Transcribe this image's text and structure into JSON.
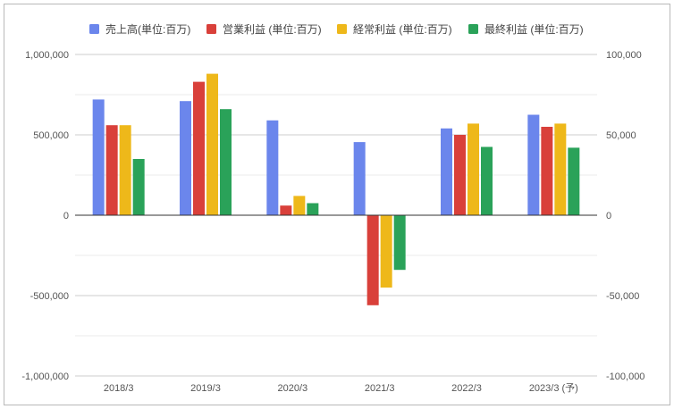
{
  "chart_data": {
    "type": "bar",
    "categories": [
      "2018/3",
      "2019/3",
      "2020/3",
      "2021/3",
      "2022/3",
      "2023/3 (予)"
    ],
    "series": [
      {
        "name": "売上高(単位:百万)",
        "color": "#6b86ec",
        "axis": "left",
        "values": [
          720000,
          710000,
          590000,
          455000,
          540000,
          625000
        ]
      },
      {
        "name": "営業利益 (単位:百万)",
        "color": "#d9403a",
        "axis": "right",
        "values": [
          56000,
          83000,
          6000,
          -56000,
          50000,
          55000
        ]
      },
      {
        "name": "経常利益 (単位:百万)",
        "color": "#eeb81a",
        "axis": "right",
        "values": [
          56000,
          88000,
          12000,
          -45000,
          57000,
          57000
        ]
      },
      {
        "name": "最終利益 (単位:百万)",
        "color": "#2aa259",
        "axis": "right",
        "values": [
          35000,
          66000,
          7500,
          -34000,
          42500,
          42000
        ]
      }
    ],
    "ylim_left": [
      -1000000,
      1000000
    ],
    "ylim_right": [
      -100000,
      100000
    ],
    "yticks_left": [
      "1,000,000",
      "500,000",
      "0",
      "-500,000",
      "-1,000,000"
    ],
    "yticks_right": [
      "100,000",
      "50,000",
      "0",
      "-50,000",
      "-100,000"
    ],
    "legend_position": "top",
    "grid": true
  }
}
